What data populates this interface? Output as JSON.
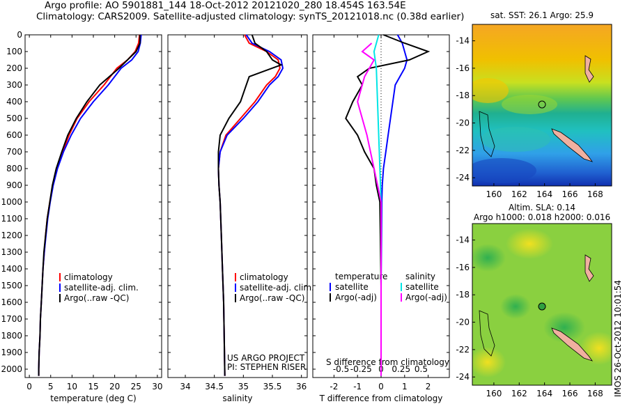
{
  "header": {
    "line1": "Argo profile: AO 5901881_144 18-Oct-2012 20121020_280 18.454S 163.54E",
    "line2": "Climatology: CARS2009. Satellite-adjusted climatology: synTS_20121018.nc (0.38d earlier)"
  },
  "stamp": "IMOS 26-Oct-2012 10:01:54",
  "colors": {
    "climatology": "#ff0000",
    "satellite": "#0000ff",
    "argo": "#000000",
    "argo_adj_s": "#ff00ff",
    "satellite_s": "#00e5e5"
  },
  "chart_data": [
    {
      "type": "line",
      "xlabel": "temperature (deg C)",
      "ylabel": "",
      "xlim": [
        -1,
        31
      ],
      "ylim": [
        2050,
        0
      ],
      "xticks": [
        0,
        5,
        10,
        15,
        20,
        25,
        30
      ],
      "yticks": [
        0,
        100,
        200,
        300,
        400,
        500,
        600,
        700,
        800,
        900,
        1000,
        1100,
        1200,
        1300,
        1400,
        1500,
        1600,
        1700,
        1800,
        1900,
        2000
      ],
      "legend": [
        "climatology",
        "satellite-adj. clim.",
        "Argo(..raw -QC)"
      ],
      "series": [
        {
          "name": "climatology",
          "color": "#ff0000",
          "points": [
            [
              25.8,
              0
            ],
            [
              25.6,
              50
            ],
            [
              24.8,
              100
            ],
            [
              23,
              150
            ],
            [
              20.5,
              200
            ],
            [
              17.5,
              300
            ],
            [
              14,
              400
            ],
            [
              11.2,
              500
            ],
            [
              9.3,
              600
            ],
            [
              7.8,
              700
            ],
            [
              6.5,
              800
            ],
            [
              5.5,
              900
            ],
            [
              4.8,
              1000
            ],
            [
              4.2,
              1100
            ],
            [
              3.8,
              1200
            ],
            [
              3.5,
              1300
            ],
            [
              3.2,
              1400
            ],
            [
              3,
              1500
            ],
            [
              2.8,
              1600
            ],
            [
              2.6,
              1700
            ],
            [
              2.5,
              1800
            ],
            [
              2.3,
              1900
            ],
            [
              2.2,
              2000
            ],
            [
              2.2,
              2040
            ]
          ]
        },
        {
          "name": "satellite-adj. clim.",
          "color": "#0000ff",
          "points": [
            [
              26.2,
              0
            ],
            [
              26,
              50
            ],
            [
              25.5,
              100
            ],
            [
              24,
              150
            ],
            [
              21.5,
              200
            ],
            [
              18.5,
              300
            ],
            [
              15,
              400
            ],
            [
              12,
              500
            ],
            [
              9.8,
              600
            ],
            [
              8,
              700
            ],
            [
              6.6,
              800
            ],
            [
              5.6,
              900
            ],
            [
              4.9,
              1000
            ],
            [
              4.3,
              1100
            ],
            [
              3.9,
              1200
            ],
            [
              3.5,
              1300
            ],
            [
              3.2,
              1400
            ],
            [
              3,
              1500
            ],
            [
              2.8,
              1600
            ],
            [
              2.6,
              1700
            ],
            [
              2.5,
              1800
            ],
            [
              2.3,
              1900
            ],
            [
              2.2,
              2000
            ],
            [
              2.2,
              2040
            ]
          ]
        },
        {
          "name": "Argo(..raw -QC)",
          "color": "#000000",
          "points": [
            [
              25.9,
              0
            ],
            [
              25.9,
              50
            ],
            [
              25,
              100
            ],
            [
              23,
              150
            ],
            [
              21,
              200
            ],
            [
              16.5,
              300
            ],
            [
              13.5,
              400
            ],
            [
              11,
              500
            ],
            [
              9,
              600
            ],
            [
              7.6,
              700
            ],
            [
              6.3,
              800
            ],
            [
              5.4,
              900
            ],
            [
              4.8,
              1000
            ],
            [
              4.2,
              1100
            ],
            [
              3.8,
              1200
            ],
            [
              3.4,
              1300
            ],
            [
              3.2,
              1400
            ],
            [
              3,
              1500
            ],
            [
              2.8,
              1600
            ],
            [
              2.6,
              1700
            ],
            [
              2.5,
              1800
            ],
            [
              2.3,
              1900
            ],
            [
              2.2,
              2000
            ],
            [
              2.2,
              2040
            ]
          ]
        }
      ]
    },
    {
      "type": "line",
      "xlabel": "salinity",
      "ylabel": "",
      "xlim": [
        33.7,
        36.1
      ],
      "ylim": [
        2050,
        0
      ],
      "xticks": [
        34,
        34.5,
        35,
        35.5,
        36
      ],
      "legend": [
        "climatology",
        "satellite-adj. clim.",
        "Argo(..raw -QC)"
      ],
      "annotation": [
        "US ARGO PROJECT",
        "PI: STEPHEN RISER"
      ],
      "series": [
        {
          "name": "climatology",
          "color": "#ff0000",
          "points": [
            [
              35.02,
              0
            ],
            [
              35.1,
              50
            ],
            [
              35.4,
              100
            ],
            [
              35.6,
              150
            ],
            [
              35.63,
              200
            ],
            [
              35.55,
              250
            ],
            [
              35.4,
              300
            ],
            [
              35.2,
              400
            ],
            [
              34.95,
              500
            ],
            [
              34.7,
              600
            ],
            [
              34.6,
              700
            ],
            [
              34.57,
              800
            ],
            [
              34.58,
              900
            ],
            [
              34.6,
              1000
            ],
            [
              34.62,
              1200
            ],
            [
              34.64,
              1400
            ],
            [
              34.66,
              1600
            ],
            [
              34.67,
              1800
            ],
            [
              34.68,
              2040
            ]
          ]
        },
        {
          "name": "satellite-adj. clim.",
          "color": "#0000ff",
          "points": [
            [
              35.05,
              0
            ],
            [
              35.15,
              50
            ],
            [
              35.45,
              100
            ],
            [
              35.65,
              150
            ],
            [
              35.68,
              200
            ],
            [
              35.6,
              250
            ],
            [
              35.45,
              300
            ],
            [
              35.25,
              400
            ],
            [
              35.0,
              500
            ],
            [
              34.72,
              600
            ],
            [
              34.6,
              700
            ],
            [
              34.57,
              800
            ],
            [
              34.58,
              900
            ],
            [
              34.6,
              1000
            ],
            [
              34.62,
              1200
            ],
            [
              34.64,
              1400
            ],
            [
              34.66,
              1600
            ],
            [
              34.67,
              1800
            ],
            [
              34.68,
              2040
            ]
          ]
        },
        {
          "name": "Argo(..raw -QC)",
          "color": "#000000",
          "points": [
            [
              35.15,
              0
            ],
            [
              35.2,
              50
            ],
            [
              35.4,
              100
            ],
            [
              35.5,
              150
            ],
            [
              35.65,
              180
            ],
            [
              35.1,
              250
            ],
            [
              35.05,
              300
            ],
            [
              34.95,
              400
            ],
            [
              34.75,
              500
            ],
            [
              34.6,
              600
            ],
            [
              34.57,
              700
            ],
            [
              34.57,
              800
            ],
            [
              34.58,
              900
            ],
            [
              34.6,
              1000
            ],
            [
              34.62,
              1200
            ],
            [
              34.64,
              1400
            ],
            [
              34.66,
              1600
            ],
            [
              34.67,
              1800
            ],
            [
              34.68,
              2040
            ]
          ]
        }
      ]
    },
    {
      "type": "line",
      "xlabel": "T difference from climatology",
      "ylabel": "",
      "xlim": [
        -2.9,
        2.9
      ],
      "ylim": [
        2050,
        0
      ],
      "xticks": [
        -2,
        -1,
        0,
        1,
        2
      ],
      "s_ticks": {
        "positions": [
          -1.7,
          -0.85,
          0.85,
          1.7
        ],
        "labels": [
          "-0.5",
          "-0.25",
          "0.25",
          "0.5"
        ]
      },
      "s_axis_label": "S difference from climatology",
      "legend": {
        "temperature_head": "temperature",
        "salinity_head": "salinity",
        "satellite": "satellite",
        "argo_adj": "Argo(-adj)"
      },
      "series": [
        {
          "name": "temperature satellite",
          "color": "#0000ff",
          "points": [
            [
              0.7,
              0
            ],
            [
              0.9,
              50
            ],
            [
              1.0,
              100
            ],
            [
              1.1,
              150
            ],
            [
              1.0,
              200
            ],
            [
              0.8,
              250
            ],
            [
              0.6,
              300
            ],
            [
              0.5,
              400
            ],
            [
              0.4,
              500
            ],
            [
              0.3,
              600
            ],
            [
              0.2,
              700
            ],
            [
              0.1,
              800
            ],
            [
              0.05,
              900
            ],
            [
              0.03,
              1000
            ],
            [
              0,
              1500
            ],
            [
              0,
              2040
            ]
          ]
        },
        {
          "name": "temperature Argo(-adj)",
          "color": "#000000",
          "points": [
            [
              0.1,
              0
            ],
            [
              1.0,
              50
            ],
            [
              2.0,
              100
            ],
            [
              1.2,
              150
            ],
            [
              -0.5,
              200
            ],
            [
              -1.0,
              250
            ],
            [
              -0.8,
              300
            ],
            [
              -1.2,
              400
            ],
            [
              -1.5,
              500
            ],
            [
              -1.0,
              600
            ],
            [
              -0.7,
              700
            ],
            [
              -0.3,
              800
            ],
            [
              -0.2,
              900
            ],
            [
              -0.05,
              1000
            ],
            [
              0,
              1500
            ],
            [
              0,
              2040
            ]
          ]
        },
        {
          "name": "salinity satellite",
          "color": "#00e5e5",
          "points": [
            [
              -0.1,
              0
            ],
            [
              -0.3,
              100
            ],
            [
              -0.2,
              200
            ],
            [
              -0.15,
              400
            ],
            [
              -0.1,
              600
            ],
            [
              -0.05,
              800
            ],
            [
              0,
              1000
            ],
            [
              0,
              2040
            ]
          ]
        },
        {
          "name": "salinity Argo(-adj)",
          "color": "#ff00ff",
          "points": [
            [
              -0.4,
              50
            ],
            [
              -0.8,
              100
            ],
            [
              -0.3,
              150
            ],
            [
              -0.7,
              250
            ],
            [
              -1.0,
              400
            ],
            [
              -0.6,
              600
            ],
            [
              -0.3,
              800
            ],
            [
              0,
              1000
            ],
            [
              0,
              2040
            ]
          ]
        }
      ]
    },
    {
      "type": "heatmap",
      "title": "sat. SST: 26.1  Argo: 25.9",
      "xlim": [
        158.3,
        169.3
      ],
      "ylim": [
        -24.6,
        -12.8
      ],
      "xticks": [
        "160",
        "162",
        "164",
        "166",
        "168"
      ],
      "yticks": [
        "-14",
        "-16",
        "-18",
        "-20",
        "-22",
        "-24"
      ]
    },
    {
      "type": "heatmap",
      "title_line1": "Altim. SLA: 0.14",
      "title_line2": "Argo h1000: 0.018 h2000: 0.016",
      "xlim": [
        158.3,
        169.3
      ],
      "ylim": [
        -24.6,
        -12.8
      ],
      "xticks": [
        "160",
        "162",
        "164",
        "166",
        "168"
      ],
      "yticks": [
        "-14",
        "-16",
        "-18",
        "-20",
        "-22",
        "-24"
      ]
    }
  ]
}
